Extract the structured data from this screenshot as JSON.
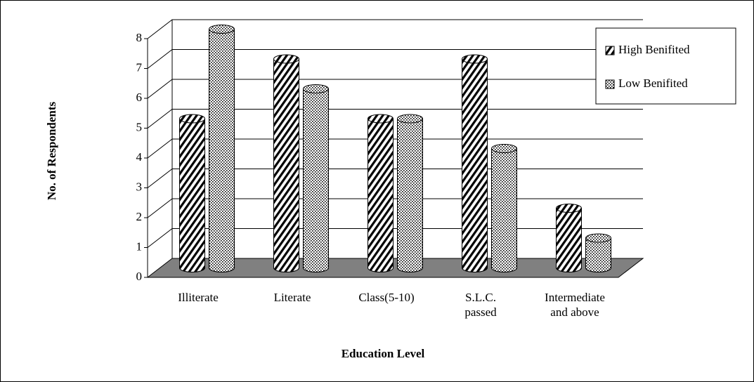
{
  "chart_data": {
    "type": "bar3d",
    "x_label": "Education Level",
    "y_label": "No. of Respondents",
    "categories": [
      "Illiterate",
      "Literate",
      "Class(5-10)",
      "S.L.C. passed",
      "Intermediate and above"
    ],
    "series": [
      {
        "name": "High Benifited",
        "color": "#000000",
        "pattern": "stripes",
        "values": [
          5,
          7,
          5,
          7,
          2
        ]
      },
      {
        "name": "Low Benifited",
        "color": "#000000",
        "pattern": "dots",
        "values": [
          8,
          6,
          5,
          4,
          1
        ]
      }
    ],
    "ylim": [
      0,
      8
    ],
    "yticks": [
      0,
      1,
      2,
      3,
      4,
      5,
      6,
      7,
      8
    ],
    "grid": true,
    "legend": "top-right",
    "floor_color": "#808080"
  }
}
